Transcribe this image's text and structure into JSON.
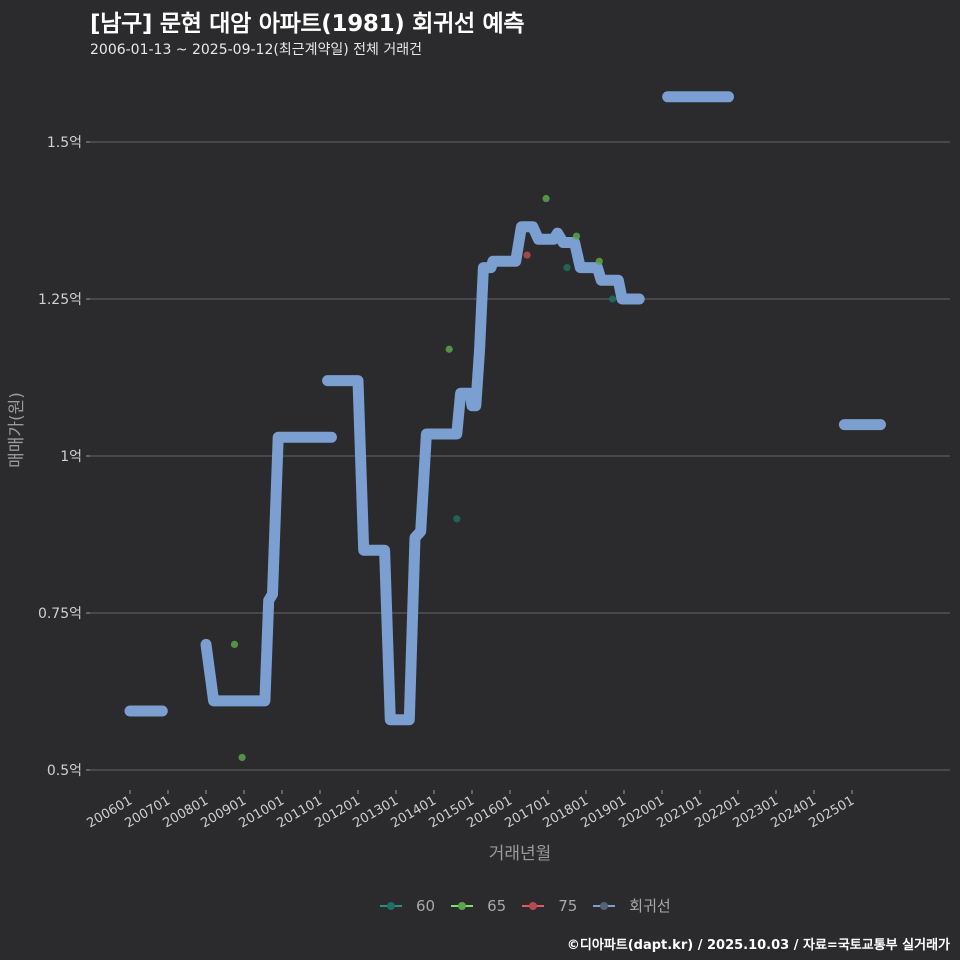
{
  "header": {
    "title": "[남구] 문현 대암 아파트(1981) 회귀선 예측",
    "subtitle": "2006-01-13 ~ 2025-09-12(최근계약일) 전체 거래건"
  },
  "caption": "©디아파트(dapt.kr) / 2025.10.03 / 자료=국토교통부 실거래가",
  "colors": {
    "background": "#2b2b2d",
    "grid": "#5a5a5a",
    "regression": "#7b9fd0",
    "s60": "#1f6f62",
    "s65": "#5aa64a",
    "s75": "#b84a4f"
  },
  "legend": [
    {
      "label": "60",
      "color": "#1f6f62",
      "line": "#2a8f80"
    },
    {
      "label": "65",
      "color": "#5aa64a",
      "line": "#7ee06a"
    },
    {
      "label": "75",
      "color": "#b84a4f",
      "line": "#e05a60"
    },
    {
      "label": "회귀선",
      "color": "#56627a",
      "line": "#7b9fd0"
    }
  ],
  "chart_data": {
    "type": "line",
    "title": "[남구] 문현 대암 아파트(1981) 회귀선 예측",
    "subtitle": "2006-01-13 ~ 2025-09-12(최근계약일) 전체 거래건",
    "xlabel": "거래년월",
    "ylabel": "매매가(원)",
    "ylim": [
      0.45,
      1.6
    ],
    "y_unit": "억",
    "yticks": [
      {
        "value": 0.5,
        "label": "0.5억"
      },
      {
        "value": 0.75,
        "label": "0.75억"
      },
      {
        "value": 1.0,
        "label": "1억"
      },
      {
        "value": 1.25,
        "label": "1.25억"
      },
      {
        "value": 1.5,
        "label": "1.5억"
      }
    ],
    "xticks": [
      "200601",
      "200701",
      "200801",
      "200901",
      "201001",
      "201101",
      "201201",
      "201301",
      "201401",
      "201501",
      "201601",
      "201701",
      "201801",
      "201901",
      "202001",
      "202101",
      "202201",
      "202301",
      "202401",
      "202501"
    ],
    "grid": true,
    "legend_position": "bottom",
    "series": [
      {
        "name": "회귀선",
        "segments": [
          [
            [
              2006.0,
              0.594
            ],
            [
              2006.85,
              0.594
            ]
          ],
          [
            [
              2008.0,
              0.7
            ],
            [
              2008.2,
              0.61
            ],
            [
              2009.55,
              0.61
            ],
            [
              2009.65,
              0.77
            ],
            [
              2009.75,
              0.78
            ],
            [
              2009.9,
              1.03
            ],
            [
              2011.3,
              1.03
            ]
          ],
          [
            [
              2011.2,
              1.12
            ],
            [
              2012.0,
              1.12
            ],
            [
              2012.15,
              0.85
            ],
            [
              2012.7,
              0.85
            ],
            [
              2012.85,
              0.58
            ],
            [
              2013.35,
              0.58
            ],
            [
              2013.5,
              0.87
            ],
            [
              2013.65,
              0.88
            ],
            [
              2013.8,
              1.035
            ],
            [
              2014.6,
              1.035
            ],
            [
              2014.7,
              1.1
            ],
            [
              2014.95,
              1.1
            ],
            [
              2015.0,
              1.08
            ],
            [
              2015.1,
              1.08
            ],
            [
              2015.2,
              1.17
            ],
            [
              2015.3,
              1.3
            ],
            [
              2015.5,
              1.3
            ],
            [
              2015.55,
              1.31
            ],
            [
              2016.15,
              1.31
            ],
            [
              2016.3,
              1.365
            ],
            [
              2016.6,
              1.365
            ],
            [
              2016.75,
              1.345
            ],
            [
              2017.15,
              1.345
            ],
            [
              2017.25,
              1.355
            ],
            [
              2017.4,
              1.34
            ],
            [
              2017.7,
              1.34
            ],
            [
              2017.85,
              1.3
            ],
            [
              2018.3,
              1.3
            ],
            [
              2018.4,
              1.28
            ],
            [
              2018.85,
              1.28
            ],
            [
              2018.95,
              1.25
            ],
            [
              2019.4,
              1.25
            ]
          ]
        ],
        "forecast_segments": [
          [
            [
              2020.15,
              1.572
            ],
            [
              2021.75,
              1.572
            ]
          ],
          [
            [
              2024.8,
              1.05
            ],
            [
              2025.75,
              1.05
            ]
          ]
        ]
      },
      {
        "name": "60",
        "points": [
          [
            2014.6,
            0.9
          ],
          [
            2017.5,
            1.3
          ],
          [
            2018.7,
            1.25
          ]
        ]
      },
      {
        "name": "65",
        "points": [
          [
            2008.75,
            0.7
          ],
          [
            2008.95,
            0.52
          ],
          [
            2014.4,
            1.17
          ],
          [
            2016.95,
            1.41
          ],
          [
            2017.75,
            1.35
          ],
          [
            2018.35,
            1.31
          ]
        ]
      },
      {
        "name": "75",
        "points": [
          [
            2016.45,
            1.32
          ]
        ]
      }
    ]
  }
}
